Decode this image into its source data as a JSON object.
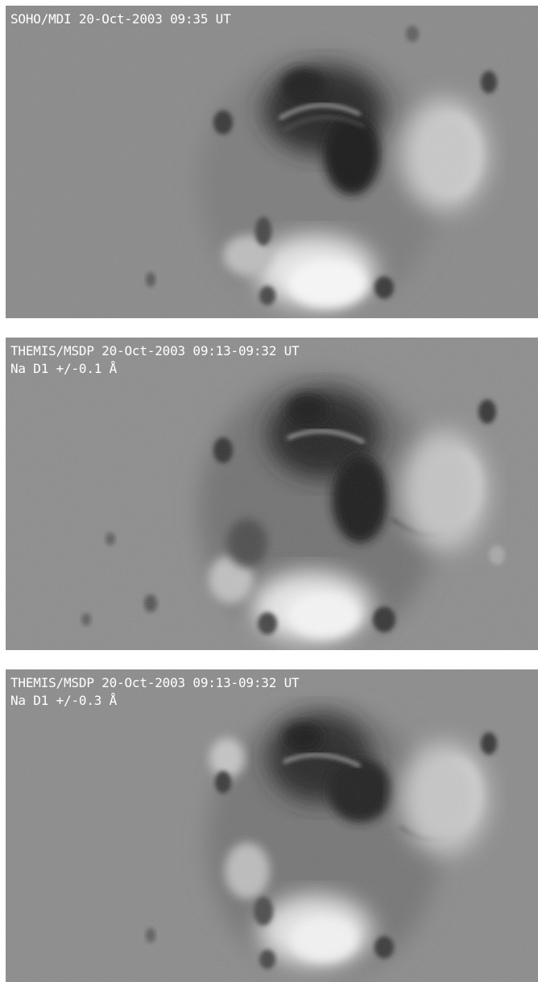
{
  "panels": [
    {
      "caption_lines": [
        "SOHO/MDI 20-Oct-2003 09:35 UT"
      ]
    },
    {
      "caption_lines": [
        "THEMIS/MSDP 20-Oct-2003 09:13-09:32 UT",
        "Na D1 +/-0.1 Å"
      ]
    },
    {
      "caption_lines": [
        "THEMIS/MSDP 20-Oct-2003 09:13-09:32 UT",
        "Na D1 +/-0.3 Å"
      ]
    }
  ],
  "colors": {
    "background_gray": "#8a8a8a",
    "negative_polarity": "#141414",
    "positive_polarity": "#f4f4f4",
    "caption_text": "#ffffff"
  }
}
